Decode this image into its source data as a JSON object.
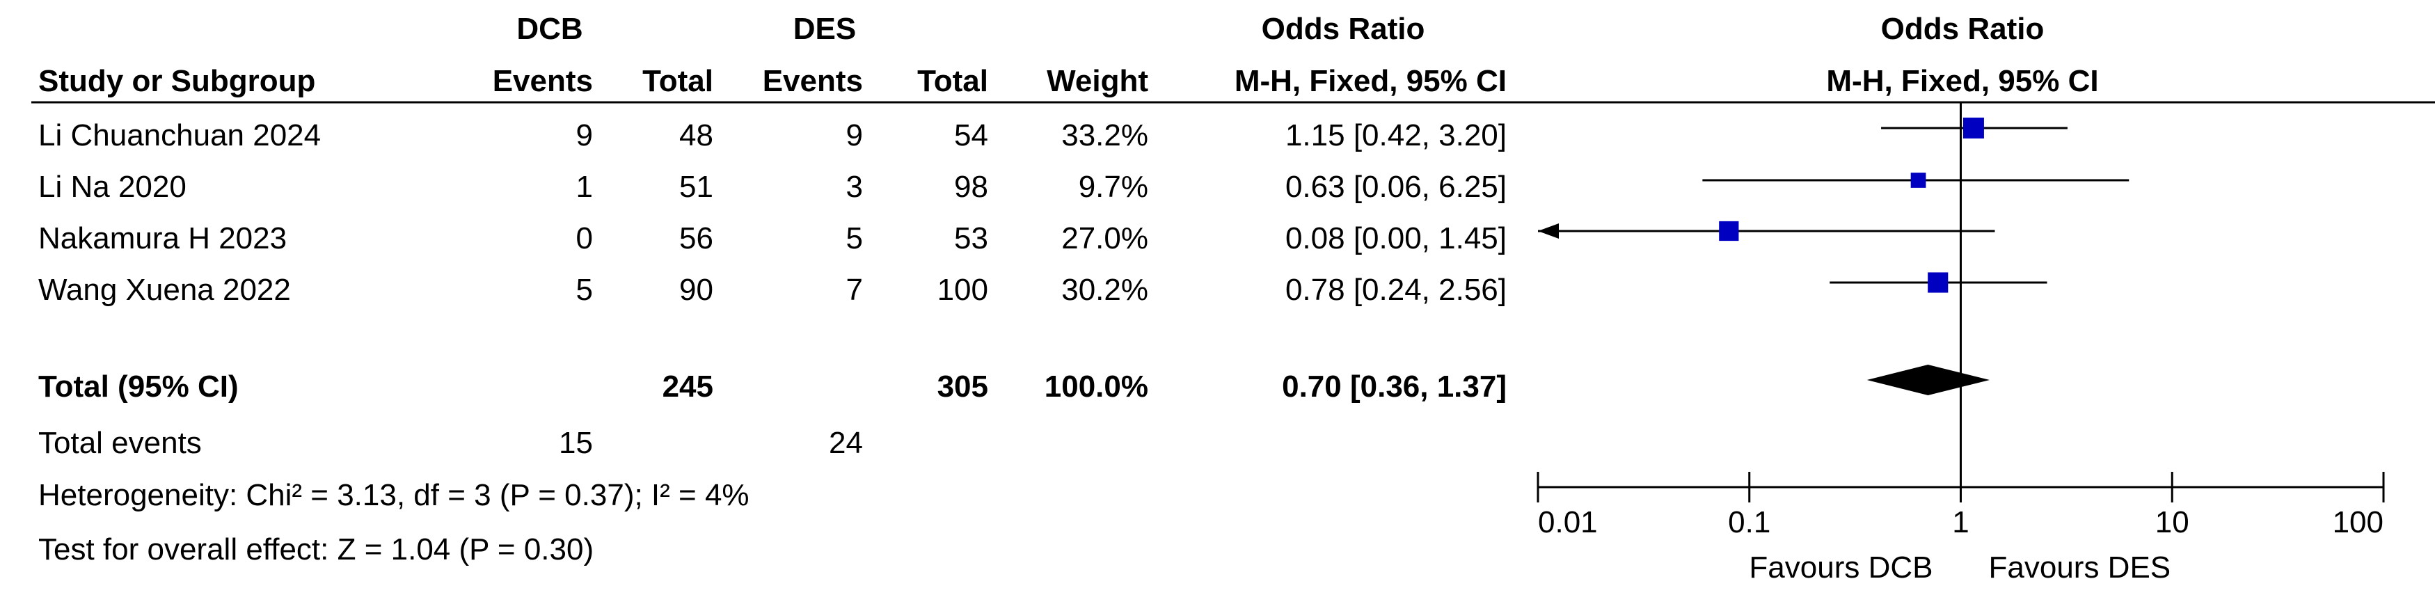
{
  "table": {
    "group1": "DCB",
    "group2": "DES",
    "or_header": "Odds Ratio",
    "col_study": "Study or Subgroup",
    "col_events1": "Events",
    "col_total1": "Total",
    "col_events2": "Events",
    "col_total2": "Total",
    "col_weight": "Weight",
    "col_method": "M-H, Fixed, 95% CI",
    "rows": [
      {
        "study": "Li Chuanchuan 2024",
        "e1": "9",
        "t1": "48",
        "e2": "9",
        "t2": "54",
        "weight": "33.2%",
        "ci": "1.15 [0.42, 3.20]"
      },
      {
        "study": "Li Na 2020",
        "e1": "1",
        "t1": "51",
        "e2": "3",
        "t2": "98",
        "weight": "9.7%",
        "ci": "0.63 [0.06, 6.25]"
      },
      {
        "study": "Nakamura H 2023",
        "e1": "0",
        "t1": "56",
        "e2": "5",
        "t2": "53",
        "weight": "27.0%",
        "ci": "0.08 [0.00, 1.45]"
      },
      {
        "study": "Wang Xuena 2022",
        "e1": "5",
        "t1": "90",
        "e2": "7",
        "t2": "100",
        "weight": "30.2%",
        "ci": "0.78 [0.24, 2.56]"
      }
    ],
    "total": {
      "label": "Total (95% CI)",
      "t1": "245",
      "t2": "305",
      "weight": "100.0%",
      "ci": "0.70 [0.36, 1.37]"
    },
    "events": {
      "label": "Total events",
      "e1": "15",
      "e2": "24"
    },
    "heterogeneity": "Heterogeneity: Chi² = 3.13, df = 3 (P = 0.37); I² = 4%",
    "overall": "Test for overall effect: Z = 1.04 (P = 0.30)"
  },
  "plot": {
    "title": "Odds Ratio",
    "subtitle": "M-H, Fixed, 95% CI",
    "favours_left": "Favours DCB",
    "favours_right": "Favours DES"
  },
  "chart_data": {
    "type": "scatter",
    "subtype": "forest-plot",
    "x_scale": "log",
    "xlim": [
      0.01,
      100
    ],
    "x_ticks": [
      0.01,
      0.1,
      1,
      10,
      100
    ],
    "x_tick_labels": [
      "0.01",
      "0.1",
      "1",
      "10",
      "100"
    ],
    "reference_line": 1,
    "square_color": "#0000c0",
    "studies": [
      {
        "name": "Li Chuanchuan 2024",
        "or": 1.15,
        "lower": 0.42,
        "upper": 3.2,
        "weight": 33.2
      },
      {
        "name": "Li Na 2020",
        "or": 0.63,
        "lower": 0.06,
        "upper": 6.25,
        "weight": 9.7
      },
      {
        "name": "Nakamura H 2023",
        "or": 0.08,
        "lower": 0.0,
        "upper": 1.45,
        "weight": 27.0,
        "lower_truncated": true
      },
      {
        "name": "Wang Xuena 2022",
        "or": 0.78,
        "lower": 0.24,
        "upper": 2.56,
        "weight": 30.2
      }
    ],
    "pooled": {
      "or": 0.7,
      "lower": 0.36,
      "upper": 1.37
    }
  }
}
